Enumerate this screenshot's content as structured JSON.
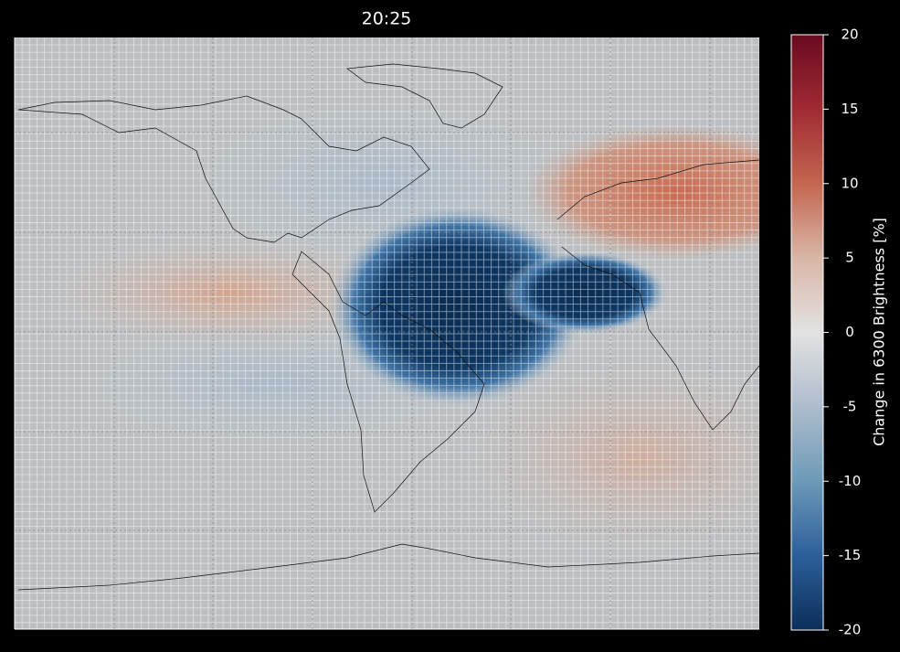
{
  "title": "20:25",
  "colorbar": {
    "label": "Change in 6300 Brightness [%]",
    "lim": [
      -20,
      20
    ],
    "ticks": [
      -20,
      -15,
      -10,
      -5,
      0,
      5,
      10,
      15,
      20
    ]
  }
}
